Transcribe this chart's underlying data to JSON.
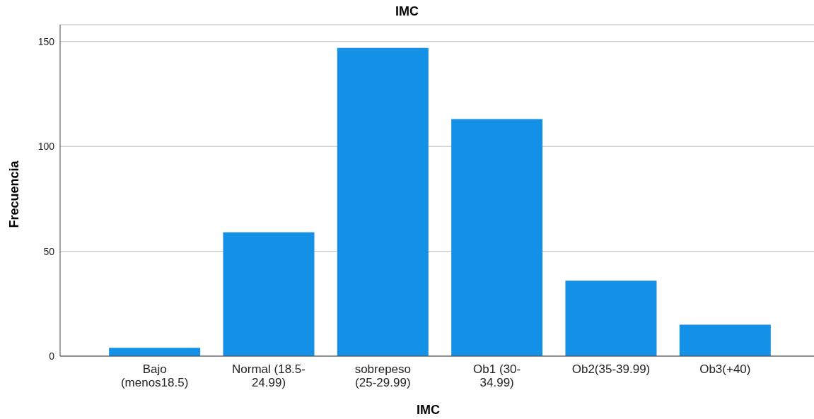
{
  "chart_data": {
    "type": "bar",
    "title": "IMC",
    "xlabel": "IMC",
    "ylabel": "Frecuencia",
    "categories": [
      "Bajo (menos18.5)",
      "Normal (18.5-24.99)",
      "sobrepeso (25-29.99)",
      "Ob1 (30-34.99)",
      "Ob2(35-39.99)",
      "Ob3(+40)"
    ],
    "values": [
      4,
      59,
      147,
      113,
      36,
      15
    ],
    "color": "#1490e6",
    "ylim": [
      0,
      158
    ],
    "yticks": [
      0,
      50,
      100,
      150
    ],
    "grid": "y"
  }
}
